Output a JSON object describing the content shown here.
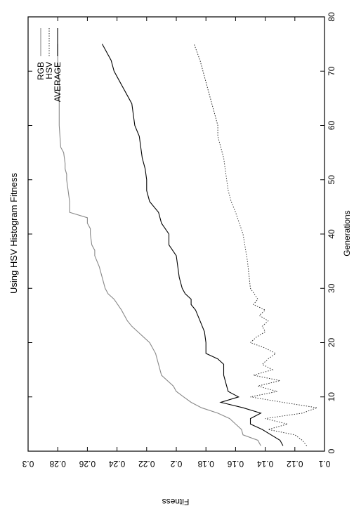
{
  "chart_data": {
    "type": "line",
    "title": "Using HSV Histogram Fitness",
    "xlabel": "Generations",
    "ylabel": "Fitness",
    "xlim": [
      0,
      80
    ],
    "ylim": [
      0.1,
      0.3
    ],
    "x_ticks": [
      0,
      10,
      20,
      30,
      40,
      50,
      60,
      70,
      80
    ],
    "y_ticks": [
      0.1,
      0.12,
      0.14,
      0.16,
      0.18,
      0.2,
      0.22,
      0.24,
      0.26,
      0.28,
      0.3
    ],
    "y_tick_labels": [
      "0.1",
      "0.12",
      "0.14",
      "0.16",
      "0.18",
      "0.2",
      "0.22",
      "0.24",
      "0.26",
      "0.28",
      "0.3"
    ],
    "grid": false,
    "orientation": "rotated-90",
    "legend_position": "top-right",
    "series": [
      {
        "name": "RGB",
        "style": "solid",
        "color": "#888888",
        "x": [
          1,
          2,
          3,
          4,
          5,
          6,
          7,
          8,
          9,
          10,
          11,
          12,
          14,
          16,
          18,
          20,
          21,
          22,
          23,
          24,
          26,
          28,
          29,
          30,
          32,
          34,
          36,
          37,
          38,
          40,
          41,
          42,
          43,
          44,
          46,
          48,
          50,
          51,
          52,
          53,
          55,
          56,
          60,
          64,
          68,
          72,
          75
        ],
        "y": [
          0.143,
          0.145,
          0.155,
          0.156,
          0.16,
          0.164,
          0.172,
          0.183,
          0.19,
          0.195,
          0.2,
          0.202,
          0.21,
          0.212,
          0.214,
          0.218,
          0.222,
          0.226,
          0.23,
          0.233,
          0.237,
          0.242,
          0.246,
          0.248,
          0.25,
          0.252,
          0.255,
          0.255,
          0.257,
          0.258,
          0.258,
          0.26,
          0.26,
          0.272,
          0.272,
          0.273,
          0.274,
          0.274,
          0.275,
          0.275,
          0.276,
          0.278,
          0.279,
          0.279,
          0.279,
          0.28,
          0.28
        ]
      },
      {
        "name": "HSV",
        "style": "dotted",
        "color": "#333333",
        "x": [
          1,
          2,
          3,
          4,
          5,
          6,
          7,
          8,
          9,
          10,
          11,
          12,
          13,
          14,
          15,
          16,
          17,
          18,
          19,
          20,
          21,
          22,
          23,
          24,
          25,
          26,
          27,
          28,
          30,
          35,
          40,
          44,
          46,
          48,
          50,
          52,
          54,
          56,
          58,
          60,
          62,
          64,
          66,
          68,
          70,
          72,
          75
        ],
        "y": [
          0.112,
          0.115,
          0.12,
          0.138,
          0.125,
          0.14,
          0.115,
          0.105,
          0.128,
          0.15,
          0.132,
          0.145,
          0.13,
          0.148,
          0.135,
          0.142,
          0.138,
          0.133,
          0.14,
          0.15,
          0.146,
          0.14,
          0.142,
          0.138,
          0.144,
          0.14,
          0.148,
          0.145,
          0.15,
          0.152,
          0.155,
          0.16,
          0.163,
          0.165,
          0.166,
          0.167,
          0.168,
          0.17,
          0.172,
          0.172,
          0.174,
          0.176,
          0.178,
          0.18,
          0.182,
          0.184,
          0.188
        ]
      },
      {
        "name": "AVERAGE",
        "style": "solid",
        "color": "#000000",
        "x": [
          1,
          2,
          3,
          4,
          5,
          6,
          7,
          8,
          9,
          10,
          11,
          12,
          14,
          16,
          17,
          18,
          20,
          22,
          24,
          26,
          27,
          28,
          29,
          30,
          32,
          36,
          38,
          40,
          42,
          44,
          46,
          48,
          50,
          52,
          54,
          56,
          58,
          60,
          62,
          64,
          66,
          68,
          70,
          72,
          75
        ],
        "y": [
          0.128,
          0.13,
          0.136,
          0.142,
          0.15,
          0.15,
          0.143,
          0.155,
          0.17,
          0.158,
          0.165,
          0.166,
          0.168,
          0.168,
          0.172,
          0.18,
          0.18,
          0.181,
          0.184,
          0.187,
          0.19,
          0.19,
          0.194,
          0.196,
          0.198,
          0.2,
          0.205,
          0.205,
          0.21,
          0.212,
          0.218,
          0.22,
          0.22,
          0.221,
          0.223,
          0.224,
          0.225,
          0.228,
          0.229,
          0.23,
          0.234,
          0.238,
          0.242,
          0.244,
          0.25
        ]
      }
    ]
  }
}
